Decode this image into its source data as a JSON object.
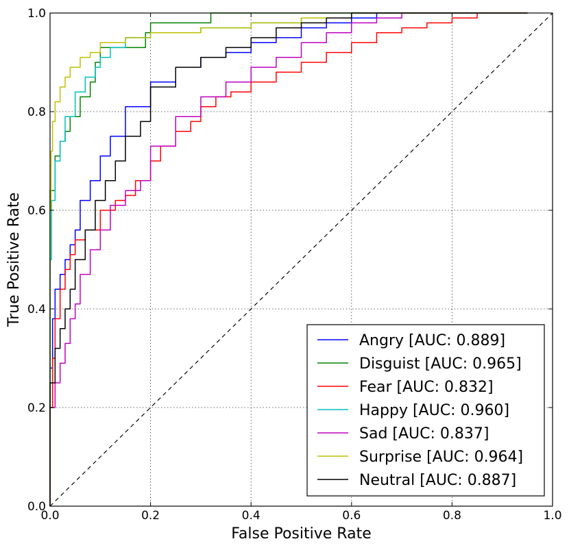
{
  "chart_data": {
    "type": "line",
    "xlabel": "False Positive Rate",
    "ylabel": "True Positive Rate",
    "xlim": [
      0,
      1
    ],
    "ylim": [
      0,
      1
    ],
    "xticks": [
      "0.0",
      "0.2",
      "0.4",
      "0.6",
      "0.8",
      "1.0"
    ],
    "yticks": [
      "0.0",
      "0.2",
      "0.4",
      "0.6",
      "0.8",
      "1.0"
    ],
    "grid": true,
    "legend_position": "bottom-right",
    "diagonal": {
      "x": [
        0,
        1
      ],
      "y": [
        0,
        1
      ],
      "style": "dashed",
      "color": "#000000"
    },
    "series": [
      {
        "name": "Angry [AUC: 0.889]",
        "color": "#0000ff",
        "x": [
          0,
          0.005,
          0.01,
          0.02,
          0.03,
          0.04,
          0.05,
          0.06,
          0.08,
          0.1,
          0.12,
          0.15,
          0.2,
          0.25,
          0.3,
          0.35,
          0.4,
          0.45,
          0.5,
          0.55,
          0.6,
          0.65,
          0.7,
          0.8,
          0.9,
          0.95
        ],
        "y": [
          0,
          0.28,
          0.38,
          0.44,
          0.47,
          0.5,
          0.53,
          0.56,
          0.62,
          0.66,
          0.71,
          0.75,
          0.81,
          0.86,
          0.89,
          0.91,
          0.92,
          0.94,
          0.95,
          0.97,
          0.98,
          0.99,
          1.0,
          1.0,
          1.0,
          1.0
        ]
      },
      {
        "name": "Disguist [AUC: 0.965]",
        "color": "#008000",
        "x": [
          0,
          0.0,
          0.01,
          0.02,
          0.03,
          0.04,
          0.06,
          0.08,
          0.09,
          0.1,
          0.11,
          0.12,
          0.14,
          0.19,
          0.2,
          0.23,
          0.32,
          0.33,
          0.95
        ],
        "y": [
          0,
          0.5,
          0.64,
          0.71,
          0.74,
          0.76,
          0.79,
          0.83,
          0.86,
          0.9,
          0.93,
          0.93,
          0.93,
          0.93,
          0.96,
          0.98,
          0.98,
          1.0,
          1.0
        ]
      },
      {
        "name": "Fear [AUC: 0.832]",
        "color": "#ff0000",
        "x": [
          0,
          0.005,
          0.01,
          0.02,
          0.03,
          0.04,
          0.05,
          0.07,
          0.1,
          0.13,
          0.15,
          0.17,
          0.2,
          0.22,
          0.25,
          0.28,
          0.3,
          0.33,
          0.36,
          0.4,
          0.45,
          0.5,
          0.55,
          0.6,
          0.65,
          0.7,
          0.75,
          0.8,
          0.85,
          0.9,
          0.95
        ],
        "y": [
          0,
          0.2,
          0.3,
          0.38,
          0.44,
          0.48,
          0.51,
          0.54,
          0.56,
          0.6,
          0.62,
          0.63,
          0.66,
          0.7,
          0.73,
          0.76,
          0.78,
          0.81,
          0.83,
          0.84,
          0.86,
          0.88,
          0.9,
          0.92,
          0.94,
          0.96,
          0.97,
          0.98,
          0.99,
          1.0,
          1.0
        ]
      },
      {
        "name": "Happy [AUC: 0.960]",
        "color": "#00bfbf",
        "x": [
          0,
          0.003,
          0.01,
          0.02,
          0.03,
          0.05,
          0.07,
          0.09,
          0.1,
          0.12,
          0.15,
          0.2,
          0.3,
          0.4,
          0.5,
          0.6,
          0.7,
          0.8,
          0.95
        ],
        "y": [
          0,
          0.5,
          0.62,
          0.7,
          0.74,
          0.79,
          0.84,
          0.87,
          0.89,
          0.91,
          0.93,
          0.95,
          0.96,
          0.97,
          0.98,
          0.99,
          1.0,
          1.0,
          1.0
        ]
      },
      {
        "name": "Sad [AUC: 0.837]",
        "color": "#bf00bf",
        "x": [
          0,
          0.01,
          0.02,
          0.03,
          0.04,
          0.05,
          0.06,
          0.08,
          0.1,
          0.12,
          0.15,
          0.18,
          0.2,
          0.25,
          0.3,
          0.35,
          0.4,
          0.45,
          0.5,
          0.55,
          0.6,
          0.65,
          0.7,
          0.8,
          0.9,
          0.95
        ],
        "y": [
          0,
          0.2,
          0.25,
          0.29,
          0.33,
          0.38,
          0.41,
          0.47,
          0.52,
          0.56,
          0.61,
          0.64,
          0.66,
          0.73,
          0.79,
          0.83,
          0.86,
          0.89,
          0.91,
          0.94,
          0.96,
          0.98,
          0.99,
          1.0,
          1.0,
          1.0
        ]
      },
      {
        "name": "Surprise [AUC: 0.964]",
        "color": "#bfbf00",
        "x": [
          0,
          0.002,
          0.005,
          0.01,
          0.02,
          0.03,
          0.04,
          0.06,
          0.08,
          0.1,
          0.15,
          0.2,
          0.3,
          0.4,
          0.5,
          0.6,
          0.7,
          0.8,
          0.95
        ],
        "y": [
          0,
          0.6,
          0.72,
          0.78,
          0.82,
          0.85,
          0.87,
          0.89,
          0.91,
          0.92,
          0.94,
          0.95,
          0.96,
          0.97,
          0.98,
          0.99,
          1.0,
          1.0,
          1.0
        ]
      },
      {
        "name": "Neutral [AUC: 0.887]",
        "color": "#000000",
        "x": [
          0,
          0.01,
          0.02,
          0.03,
          0.04,
          0.05,
          0.07,
          0.09,
          0.11,
          0.13,
          0.15,
          0.18,
          0.2,
          0.25,
          0.3,
          0.35,
          0.4,
          0.45,
          0.5,
          0.55,
          0.6,
          0.65,
          0.7,
          0.8,
          0.9,
          0.95
        ],
        "y": [
          0,
          0.25,
          0.32,
          0.36,
          0.4,
          0.44,
          0.5,
          0.56,
          0.62,
          0.66,
          0.7,
          0.75,
          0.78,
          0.85,
          0.89,
          0.91,
          0.93,
          0.95,
          0.97,
          0.98,
          0.99,
          1.0,
          1.0,
          1.0,
          1.0,
          1.0
        ]
      }
    ]
  }
}
